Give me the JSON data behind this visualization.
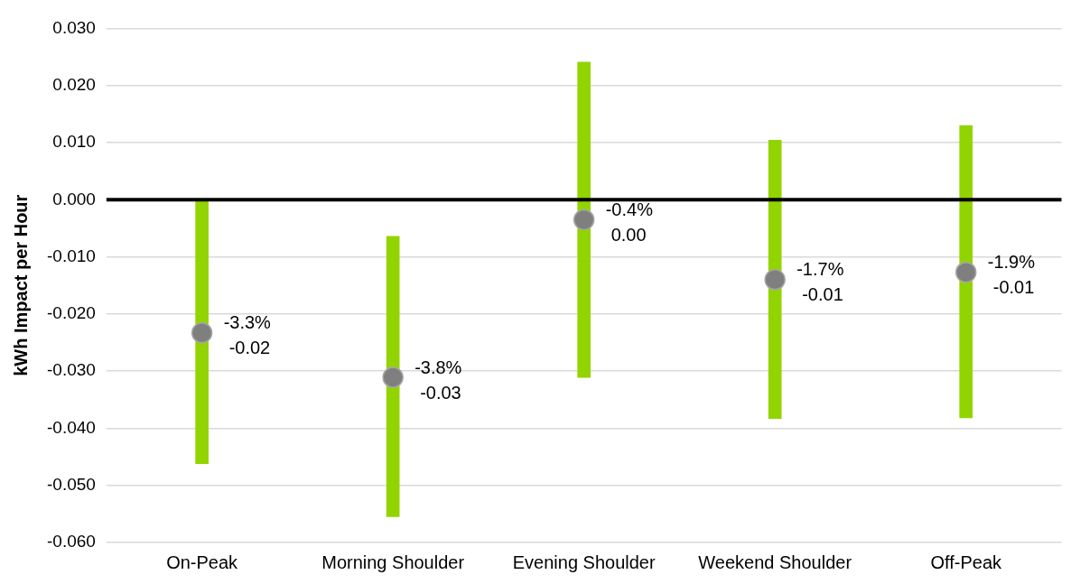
{
  "chart_data": {
    "type": "bar",
    "ylabel": "kWh Impact per Hour",
    "categories": [
      "On-Peak",
      "Morning Shoulder",
      "Evening Shoulder",
      "Weekend Shoulder",
      "Off-Peak"
    ],
    "ylim": [
      -0.06,
      0.03
    ],
    "yticks": [
      {
        "value": -0.06,
        "label": "-0.060"
      },
      {
        "value": -0.05,
        "label": "-0.050"
      },
      {
        "value": -0.04,
        "label": "-0.040"
      },
      {
        "value": -0.03,
        "label": "-0.030"
      },
      {
        "value": -0.02,
        "label": "-0.020"
      },
      {
        "value": -0.01,
        "label": "-0.010"
      },
      {
        "value": 0,
        "label": "0.000"
      },
      {
        "value": 0.01,
        "label": "0.010"
      },
      {
        "value": 0.02,
        "label": "0.020"
      },
      {
        "value": 0.03,
        "label": "0.030"
      }
    ],
    "grid": "y",
    "series": [
      {
        "color": "#92d400",
        "base": [
          -0.0462,
          -0.0555,
          -0.0311,
          -0.0383,
          -0.0382
        ],
        "values": [
          0.0459,
          0.0491,
          0.0552,
          0.0487,
          0.0512
        ]
      },
      {
        "type": "scatter",
        "color": "#7f7f7f",
        "marker": "circle",
        "x": [
          "On-Peak",
          "Morning Shoulder",
          "Evening Shoulder",
          "Weekend Shoulder",
          "Off-Peak"
        ],
        "values": [
          -0.0233,
          -0.0311,
          -0.0035,
          -0.014,
          -0.0127
        ],
        "value_labels": [
          "-3.3%\n-0.02",
          "-3.8%\n-0.03",
          "-0.4%\n0.00",
          "-1.7%\n-0.01",
          "-1.9%\n-0.01"
        ]
      }
    ],
    "ref_lines": [
      {
        "axis": "y",
        "value": 0,
        "color": "#000000"
      }
    ]
  }
}
